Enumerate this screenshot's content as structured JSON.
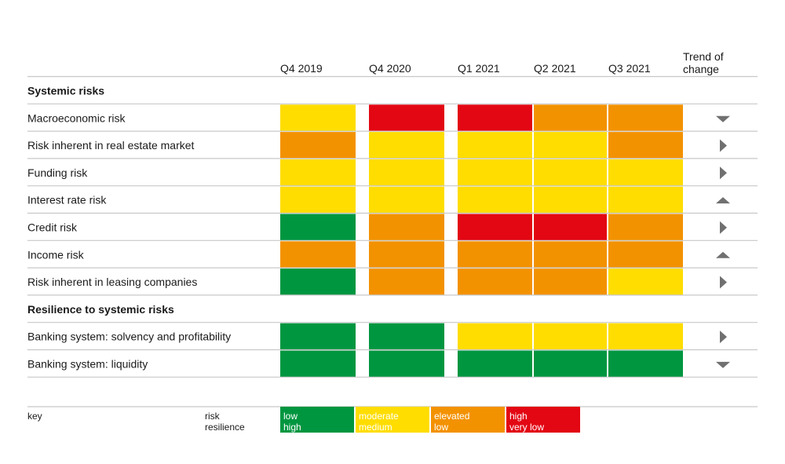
{
  "chart_data": {
    "type": "heatmap",
    "columns": [
      "Q4 2019",
      "Q4 2020",
      "Q1 2021",
      "Q2 2021",
      "Q3 2021"
    ],
    "trend_header": "Trend of\nchange",
    "sections": [
      {
        "title": "Systemic risks",
        "rows": [
          {
            "label": "Macroeconomic risk",
            "cells": [
              "moderate",
              "high",
              "high",
              "elevated",
              "elevated"
            ],
            "trend": "down"
          },
          {
            "label": "Risk inherent in real estate market",
            "cells": [
              "elevated",
              "moderate",
              "moderate",
              "moderate",
              "elevated"
            ],
            "trend": "right"
          },
          {
            "label": "Funding risk",
            "cells": [
              "moderate",
              "moderate",
              "moderate",
              "moderate",
              "moderate"
            ],
            "trend": "right"
          },
          {
            "label": "Interest rate risk",
            "cells": [
              "moderate",
              "moderate",
              "moderate",
              "moderate",
              "moderate"
            ],
            "trend": "up"
          },
          {
            "label": "Credit risk",
            "cells": [
              "low",
              "elevated",
              "high",
              "high",
              "elevated"
            ],
            "trend": "right"
          },
          {
            "label": "Income risk",
            "cells": [
              "elevated",
              "elevated",
              "elevated",
              "elevated",
              "elevated"
            ],
            "trend": "up"
          },
          {
            "label": "Risk inherent in leasing companies",
            "cells": [
              "low",
              "elevated",
              "elevated",
              "elevated",
              "moderate"
            ],
            "trend": "right"
          }
        ]
      },
      {
        "title": "Resilience to systemic risks",
        "rows": [
          {
            "label": "Banking system: solvency and profitability",
            "cells": [
              "low",
              "low",
              "moderate",
              "moderate",
              "moderate"
            ],
            "trend": "right"
          },
          {
            "label": "Banking system: liquidity",
            "cells": [
              "low",
              "low",
              "low",
              "low",
              "low"
            ],
            "trend": "down"
          }
        ]
      }
    ],
    "key": {
      "label": "key",
      "row_labels": [
        "risk",
        "resilience"
      ],
      "levels": [
        {
          "id": "low",
          "risk": "low",
          "resilience": "high",
          "color": "#009640"
        },
        {
          "id": "moderate",
          "risk": "moderate",
          "resilience": "medium",
          "color": "#FFDD00"
        },
        {
          "id": "elevated",
          "risk": "elevated",
          "resilience": "low",
          "color": "#F39200"
        },
        {
          "id": "high",
          "risk": "high",
          "resilience": "very low",
          "color": "#E30613"
        }
      ]
    },
    "colors": {
      "line": "#c8c8c8",
      "arrow": "#707070",
      "text": "#1a1a1a"
    }
  }
}
